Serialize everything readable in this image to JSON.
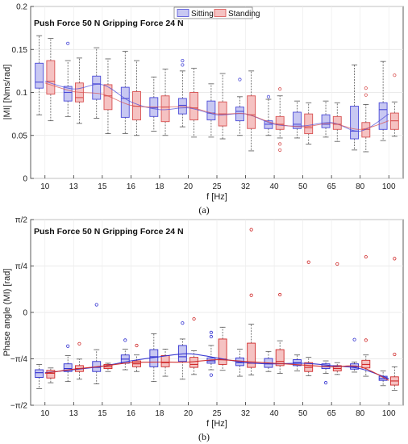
{
  "chart_data": [
    {
      "type": "box",
      "title": "Push Force 50 N Gripping Force 24 N",
      "caption": "(a)",
      "xlabel": "f [Hz]",
      "ylabel": "|MI| [Nms/rad]",
      "categories": [
        "10",
        "13",
        "15",
        "16",
        "18",
        "20",
        "25",
        "32",
        "40",
        "50",
        "65",
        "80",
        "100"
      ],
      "ylim": [
        0.0,
        0.2
      ],
      "yticks": [
        {
          "value": 0.2,
          "label": "0.2"
        },
        {
          "value": 0.15,
          "label": "0.15"
        },
        {
          "value": 0.1,
          "label": "0.1"
        },
        {
          "value": 0.05,
          "label": "0.05"
        },
        {
          "value": 0.0,
          "label": "0"
        }
      ],
      "grid": true,
      "legend": {
        "position": "top-center",
        "entries": [
          "Sitting",
          "Standing"
        ]
      },
      "series": [
        {
          "name": "Sitting",
          "color": "#4a4ad8",
          "fill": "#c8c8f2",
          "boxes": [
            {
              "q1": 0.105,
              "median": 0.112,
              "q3": 0.134,
              "wl": 0.074,
              "wh": 0.166,
              "outliers": []
            },
            {
              "q1": 0.09,
              "median": 0.1,
              "q3": 0.107,
              "wl": 0.072,
              "wh": 0.137,
              "outliers": [
                0.157
              ]
            },
            {
              "q1": 0.092,
              "median": 0.11,
              "q3": 0.119,
              "wl": 0.07,
              "wh": 0.152,
              "outliers": []
            },
            {
              "q1": 0.071,
              "median": 0.093,
              "q3": 0.106,
              "wl": 0.052,
              "wh": 0.148,
              "outliers": []
            },
            {
              "q1": 0.072,
              "median": 0.082,
              "q3": 0.094,
              "wl": 0.055,
              "wh": 0.118,
              "outliers": []
            },
            {
              "q1": 0.075,
              "median": 0.085,
              "q3": 0.093,
              "wl": 0.06,
              "wh": 0.125,
              "outliers": [
                0.132,
                0.137
              ]
            },
            {
              "q1": 0.068,
              "median": 0.076,
              "q3": 0.09,
              "wl": 0.048,
              "wh": 0.11,
              "outliers": []
            },
            {
              "q1": 0.067,
              "median": 0.078,
              "q3": 0.083,
              "wl": 0.05,
              "wh": 0.095,
              "outliers": [
                0.115
              ]
            },
            {
              "q1": 0.058,
              "median": 0.063,
              "q3": 0.067,
              "wl": 0.05,
              "wh": 0.092,
              "outliers": [
                0.095
              ]
            },
            {
              "q1": 0.058,
              "median": 0.063,
              "q3": 0.077,
              "wl": 0.047,
              "wh": 0.09,
              "outliers": []
            },
            {
              "q1": 0.059,
              "median": 0.063,
              "q3": 0.074,
              "wl": 0.048,
              "wh": 0.09,
              "outliers": []
            },
            {
              "q1": 0.046,
              "median": 0.055,
              "q3": 0.084,
              "wl": 0.033,
              "wh": 0.132,
              "outliers": []
            },
            {
              "q1": 0.057,
              "median": 0.08,
              "q3": 0.088,
              "wl": 0.044,
              "wh": 0.136,
              "outliers": []
            }
          ],
          "trend": [
            0.113,
            0.104,
            0.109,
            0.089,
            0.08,
            0.082,
            0.074,
            0.075,
            0.063,
            0.061,
            0.065,
            0.055,
            0.075
          ]
        },
        {
          "name": "Standing",
          "color": "#d85050",
          "fill": "#f5c2c2",
          "boxes": [
            {
              "q1": 0.098,
              "median": 0.113,
              "q3": 0.137,
              "wl": 0.067,
              "wh": 0.163,
              "outliers": []
            },
            {
              "q1": 0.089,
              "median": 0.094,
              "q3": 0.111,
              "wl": 0.064,
              "wh": 0.14,
              "outliers": []
            },
            {
              "q1": 0.08,
              "median": 0.096,
              "q3": 0.109,
              "wl": 0.052,
              "wh": 0.139,
              "outliers": []
            },
            {
              "q1": 0.068,
              "median": 0.084,
              "q3": 0.101,
              "wl": 0.05,
              "wh": 0.137,
              "outliers": []
            },
            {
              "q1": 0.066,
              "median": 0.083,
              "q3": 0.096,
              "wl": 0.05,
              "wh": 0.127,
              "outliers": []
            },
            {
              "q1": 0.068,
              "median": 0.082,
              "q3": 0.1,
              "wl": 0.048,
              "wh": 0.128,
              "outliers": []
            },
            {
              "q1": 0.061,
              "median": 0.075,
              "q3": 0.089,
              "wl": 0.046,
              "wh": 0.122,
              "outliers": []
            },
            {
              "q1": 0.058,
              "median": 0.074,
              "q3": 0.096,
              "wl": 0.032,
              "wh": 0.125,
              "outliers": []
            },
            {
              "q1": 0.057,
              "median": 0.063,
              "q3": 0.072,
              "wl": 0.047,
              "wh": 0.096,
              "outliers": [
                0.104,
                0.033,
                0.04
              ]
            },
            {
              "q1": 0.052,
              "median": 0.059,
              "q3": 0.075,
              "wl": 0.04,
              "wh": 0.088,
              "outliers": []
            },
            {
              "q1": 0.057,
              "median": 0.063,
              "q3": 0.072,
              "wl": 0.043,
              "wh": 0.088,
              "outliers": []
            },
            {
              "q1": 0.048,
              "median": 0.057,
              "q3": 0.065,
              "wl": 0.031,
              "wh": 0.086,
              "outliers": [
                0.105,
                0.097
              ]
            },
            {
              "q1": 0.057,
              "median": 0.067,
              "q3": 0.076,
              "wl": 0.049,
              "wh": 0.089,
              "outliers": [
                0.12
              ]
            }
          ],
          "trend": [
            0.111,
            0.101,
            0.098,
            0.085,
            0.083,
            0.083,
            0.075,
            0.075,
            0.064,
            0.06,
            0.064,
            0.057,
            0.067
          ]
        }
      ]
    },
    {
      "type": "box",
      "title": "Push Force 50 N Gripping Force 24 N",
      "caption": "(b)",
      "xlabel": "f [Hz]",
      "ylabel": "Phase angle (MI) [rad]",
      "categories": [
        "10",
        "13",
        "15",
        "16",
        "18",
        "20",
        "25",
        "32",
        "40",
        "50",
        "65",
        "80",
        "100"
      ],
      "ylim": [
        -1.5708,
        1.5708
      ],
      "yticks": [
        {
          "value": 1.5708,
          "label": "π/2"
        },
        {
          "value": 0.7854,
          "label": "π/4"
        },
        {
          "value": 0.0,
          "label": "0"
        },
        {
          "value": -0.7854,
          "label": "−π/4"
        },
        {
          "value": -1.5708,
          "label": "−π/2"
        }
      ],
      "grid": true,
      "series": [
        {
          "name": "Sitting",
          "color": "#3030d0",
          "fill": "#c8c8f2",
          "boxes": [
            {
              "q1": -1.1,
              "median": -1.02,
              "q3": -0.97,
              "wl": -1.29,
              "wh": -0.88,
              "outliers": []
            },
            {
              "q1": -1.0,
              "median": -0.95,
              "q3": -0.87,
              "wl": -1.17,
              "wh": -0.73,
              "outliers": [
                -0.57
              ]
            },
            {
              "q1": -1.0,
              "median": -0.93,
              "q3": -0.83,
              "wl": -1.21,
              "wh": -0.63,
              "outliers": [
                0.13
              ]
            },
            {
              "q1": -0.86,
              "median": -0.79,
              "q3": -0.72,
              "wl": -0.97,
              "wh": -0.62,
              "outliers": [
                -0.47
              ]
            },
            {
              "q1": -0.92,
              "median": -0.75,
              "q3": -0.63,
              "wl": -1.17,
              "wh": -0.36,
              "outliers": []
            },
            {
              "q1": -0.83,
              "median": -0.75,
              "q3": -0.56,
              "wl": -1.13,
              "wh": -0.45,
              "outliers": [
                -0.18
              ]
            },
            {
              "q1": -0.86,
              "median": -0.82,
              "q3": -0.77,
              "wl": -0.97,
              "wh": -0.56,
              "outliers": [
                -0.41,
                -0.34,
                -1.06
              ]
            },
            {
              "q1": -0.9,
              "median": -0.85,
              "q3": -0.77,
              "wl": -1.08,
              "wh": -0.62,
              "outliers": []
            },
            {
              "q1": -0.93,
              "median": -0.87,
              "q3": -0.78,
              "wl": -1.0,
              "wh": -0.66,
              "outliers": []
            },
            {
              "q1": -0.9,
              "median": -0.85,
              "q3": -0.8,
              "wl": -0.99,
              "wh": -0.72,
              "outliers": []
            },
            {
              "q1": -0.95,
              "median": -0.91,
              "q3": -0.87,
              "wl": -1.03,
              "wh": -0.82,
              "outliers": [
                -1.19
              ]
            },
            {
              "q1": -0.96,
              "median": -0.92,
              "q3": -0.87,
              "wl": -1.01,
              "wh": -0.84,
              "outliers": [
                -0.46
              ]
            },
            {
              "q1": -1.15,
              "median": -1.12,
              "q3": -1.08,
              "wl": -1.24,
              "wh": -0.99,
              "outliers": []
            }
          ],
          "trend": [
            -1.02,
            -0.97,
            -0.91,
            -0.82,
            -0.75,
            -0.7,
            -0.77,
            -0.85,
            -0.87,
            -0.86,
            -0.9,
            -0.95,
            -1.12
          ]
        },
        {
          "name": "Standing",
          "color": "#d02828",
          "fill": "#f5c2c2",
          "boxes": [
            {
              "q1": -1.11,
              "median": -1.03,
              "q3": -0.98,
              "wl": -1.19,
              "wh": -0.94,
              "outliers": []
            },
            {
              "q1": -1.0,
              "median": -0.95,
              "q3": -0.9,
              "wl": -1.13,
              "wh": -0.79,
              "outliers": [
                -0.53
              ]
            },
            {
              "q1": -0.95,
              "median": -0.92,
              "q3": -0.88,
              "wl": -1.0,
              "wh": -0.86,
              "outliers": []
            },
            {
              "q1": -0.92,
              "median": -0.87,
              "q3": -0.82,
              "wl": -1.0,
              "wh": -0.72,
              "outliers": [
                -0.56
              ]
            },
            {
              "q1": -0.92,
              "median": -0.85,
              "q3": -0.73,
              "wl": -1.08,
              "wh": -0.62,
              "outliers": []
            },
            {
              "q1": -0.93,
              "median": -0.88,
              "q3": -0.76,
              "wl": -1.05,
              "wh": -0.65,
              "outliers": [
                -0.11
              ]
            },
            {
              "q1": -0.88,
              "median": -0.79,
              "q3": -0.45,
              "wl": -0.98,
              "wh": -0.25,
              "outliers": []
            },
            {
              "q1": -0.93,
              "median": -0.86,
              "q3": -0.52,
              "wl": -1.06,
              "wh": -0.2,
              "outliers": [
                1.4,
                0.29
              ]
            },
            {
              "q1": -0.9,
              "median": -0.83,
              "q3": -0.63,
              "wl": -1.03,
              "wh": -0.48,
              "outliers": [
                0.3
              ]
            },
            {
              "q1": -1.0,
              "median": -0.93,
              "q3": -0.85,
              "wl": -1.07,
              "wh": -0.76,
              "outliers": [
                0.85
              ]
            },
            {
              "q1": -0.99,
              "median": -0.95,
              "q3": -0.9,
              "wl": -1.05,
              "wh": -0.85,
              "outliers": [
                0.82
              ]
            },
            {
              "q1": -0.94,
              "median": -0.88,
              "q3": -0.81,
              "wl": -1.08,
              "wh": -0.72,
              "outliers": [
                0.94,
                -0.47
              ]
            },
            {
              "q1": -1.23,
              "median": -1.16,
              "q3": -1.09,
              "wl": -1.32,
              "wh": -0.92,
              "outliers": [
                0.91,
                -0.71
              ]
            }
          ],
          "trend": [
            -1.03,
            -0.96,
            -0.91,
            -0.85,
            -0.84,
            -0.84,
            -0.8,
            -0.83,
            -0.86,
            -0.89,
            -0.92,
            -0.92,
            -1.15
          ]
        }
      ]
    }
  ]
}
